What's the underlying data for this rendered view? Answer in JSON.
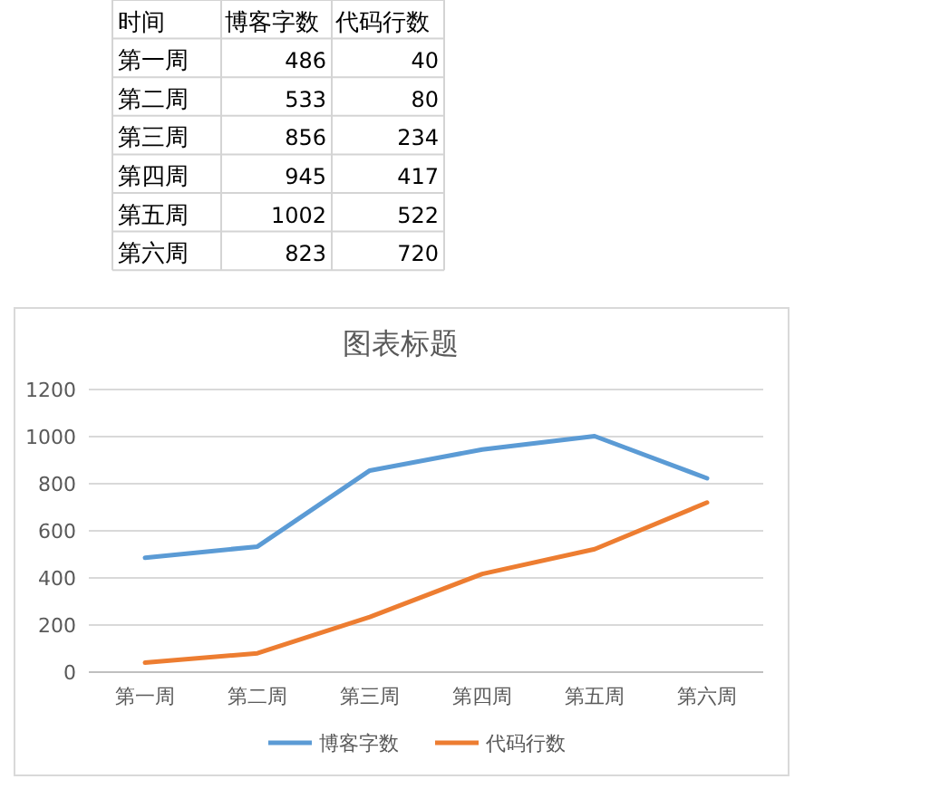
{
  "chart_data": {
    "type": "line",
    "title": "图表标题",
    "annotations": [
      "时间",
      "486",
      "40",
      "533",
      "80",
      "856",
      "234",
      "945",
      "417",
      "1002",
      "522",
      "823",
      "720"
    ],
    "categories": [
      "第一周",
      "第二周",
      "第三周",
      "第四周",
      "第五周",
      "第六周"
    ],
    "series": [
      {
        "name": "博客字数",
        "color": "#5b9bd5",
        "values": [
          486,
          533,
          856,
          945,
          1002,
          823
        ]
      },
      {
        "name": "代码行数",
        "color": "#ed7d31",
        "values": [
          40,
          80,
          234,
          417,
          522,
          720
        ]
      }
    ],
    "ylim": [
      0,
      1200
    ],
    "yticks": [
      0,
      200,
      400,
      600,
      800,
      1000,
      1200
    ],
    "grid": "y",
    "legend": "bottom",
    "line_style": "solid"
  }
}
